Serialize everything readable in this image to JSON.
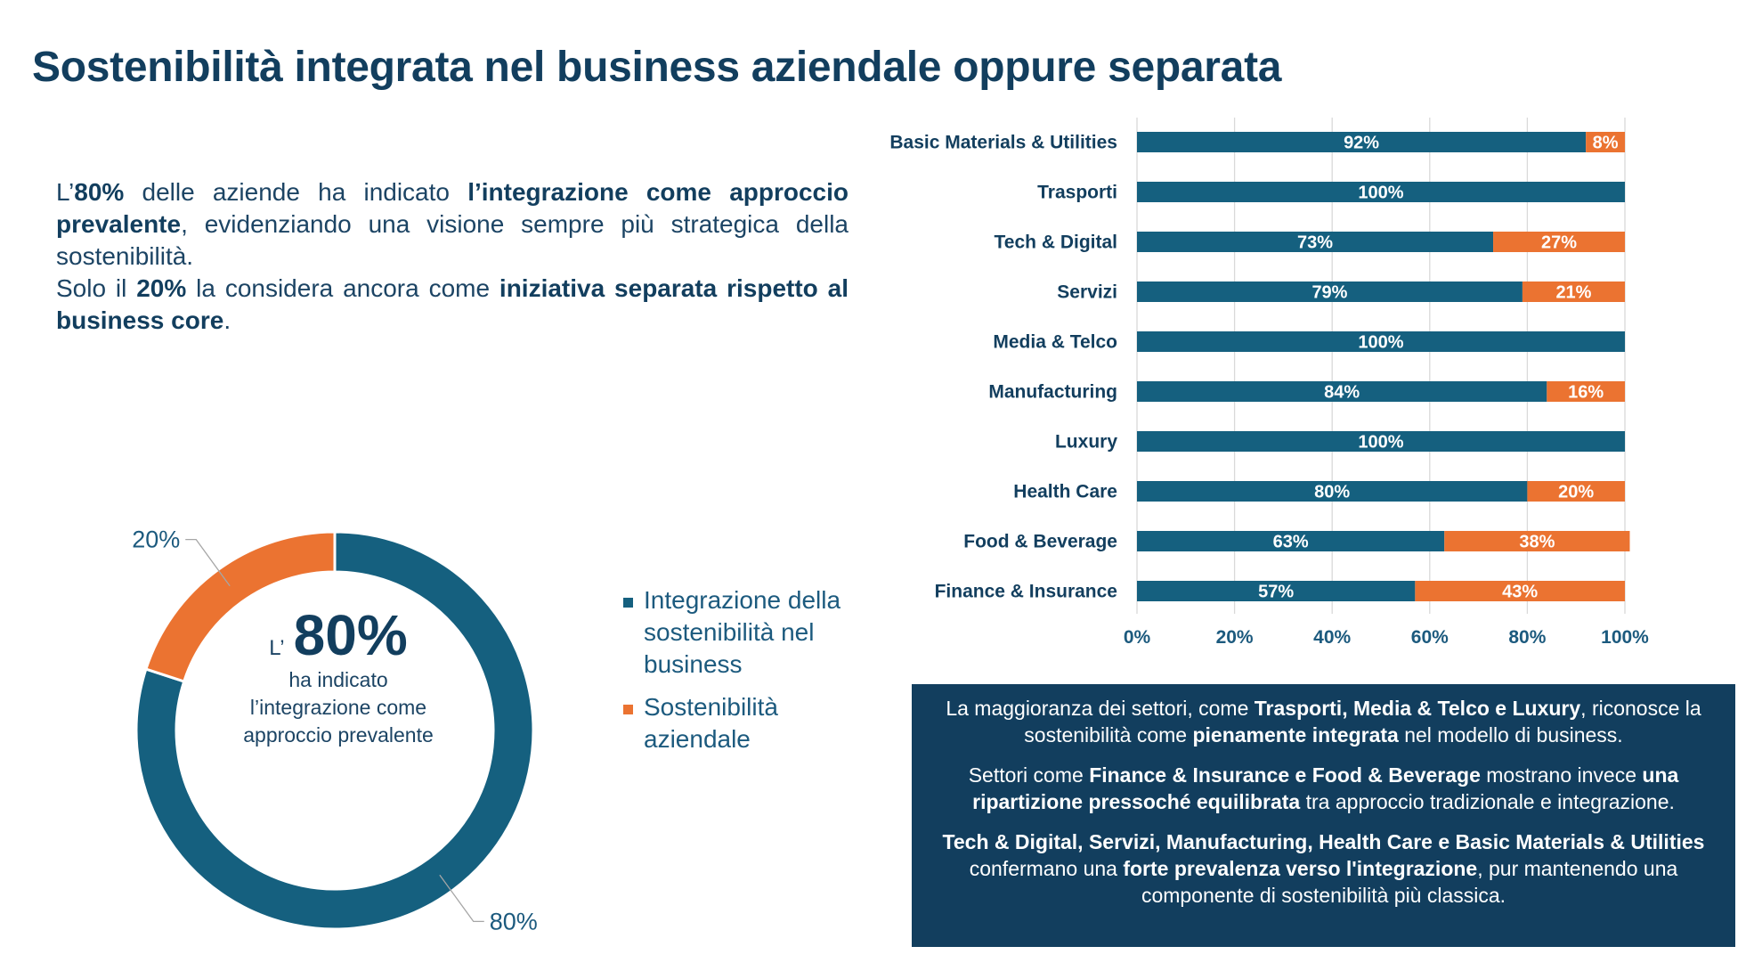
{
  "title": "Sostenibilità integrata nel business aziendale oppure separata",
  "intro": {
    "p1_a": "L’",
    "p1_b": "80%",
    "p1_c": " delle aziende ha indicato ",
    "p1_d": "l’integrazione come approccio prevalente",
    "p1_e": ", evidenziando una visione sempre più strategica della sostenibilità.",
    "p2_a": "Solo il ",
    "p2_b": "20%",
    "p2_c": " la considera ancora come ",
    "p2_d": "iniziativa separata rispetto al business core",
    "p2_e": "."
  },
  "donut_center": {
    "prefix": "L’",
    "value": "80%",
    "text1": "ha indicato",
    "text2": "l’integrazione come",
    "text3": "approccio prevalente"
  },
  "legend": [
    {
      "label": "Integrazione della sostenibilità nel business",
      "color": "#15607f"
    },
    {
      "label": "Sostenibilità aziendale",
      "color": "#eb7331"
    }
  ],
  "colors": {
    "blue": "#15607f",
    "orange": "#eb7331",
    "navy": "#123e5e"
  },
  "chart_data": [
    {
      "type": "pie",
      "donut": true,
      "slices": [
        {
          "label": "Integrazione della sostenibilità nel business",
          "value": 80,
          "display": "80%",
          "color": "#15607f"
        },
        {
          "label": "Sostenibilità aziendale",
          "value": 20,
          "display": "20%",
          "color": "#eb7331"
        }
      ]
    },
    {
      "type": "bar",
      "orientation": "horizontal",
      "stacked": true,
      "categories": [
        "Basic Materials & Utilities",
        "Trasporti",
        "Tech & Digital",
        "Servizi",
        "Media & Telco",
        "Manufacturing",
        "Luxury",
        "Health Care",
        "Food & Beverage",
        "Finance & Insurance"
      ],
      "series": [
        {
          "values": [
            92,
            100,
            73,
            79,
            100,
            84,
            100,
            80,
            63,
            57
          ],
          "color": "#15607f"
        },
        {
          "values": [
            8,
            0,
            27,
            21,
            0,
            16,
            0,
            20,
            38,
            43
          ],
          "color": "#eb7331"
        }
      ],
      "xlim": [
        0,
        100
      ],
      "xticks": [
        "0%",
        "20%",
        "40%",
        "60%",
        "80%",
        "100%"
      ],
      "value_suffix": "%",
      "grid": true
    }
  ],
  "summary": {
    "p1_a": "La maggioranza dei settori, come ",
    "p1_b": "Trasporti, Media & Telco e Luxury",
    "p1_c": ", riconosce la sostenibilità come ",
    "p1_d": "pienamente integrata",
    "p1_e": " nel modello di business.",
    "p2_a": "Settori come ",
    "p2_b": "Finance & Insurance e Food & Beverage",
    "p2_c": " mostrano invece ",
    "p2_d": "una ripartizione pressoché equilibrata",
    "p2_e": " tra approccio tradizionale e integrazione.",
    "p3_a": "Tech & Digital, Servizi, Manufacturing, Health Care e Basic Materials & Utilities",
    "p3_b": " confermano una ",
    "p3_c": "forte prevalenza verso l'integrazione",
    "p3_d": ", pur mantenendo una componente di sostenibilità più classica."
  }
}
